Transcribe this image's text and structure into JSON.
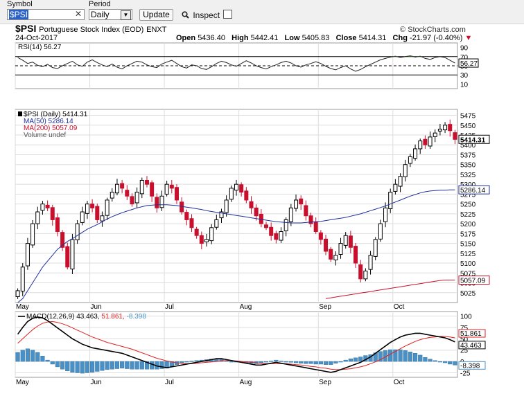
{
  "toolbar": {
    "symbol_label": "Symbol",
    "symbol_value": "$PSI",
    "clear_glyph": "✕",
    "period_label": "Period",
    "period_value": "Daily",
    "period_chevron": "▼",
    "update_label": "Update",
    "inspect_label": "Inspect",
    "inspect_checked": false
  },
  "header": {
    "symbol": "$PSI",
    "name": "Portuguese Stock Index (EOD)",
    "exchange": "ENXT",
    "date": "24-Oct-2017",
    "brand": "© StockCharts.com",
    "open_label": "Open",
    "open": "5436.40",
    "high_label": "High",
    "high": "5442.41",
    "low_label": "Low",
    "low": "5405.83",
    "close_label": "Close",
    "close": "5414.31",
    "chg_label": "Chg",
    "chg": "-21.97 (-0.40%)",
    "chg_icon": "▼"
  },
  "colors": {
    "up": "#000000",
    "down": "#c8102e",
    "ma50": "#1f2f9c",
    "ma200": "#c8102e",
    "hist": "#4a90c4",
    "signal": "#e02020",
    "grid": "#dddddd"
  },
  "chart_data": [
    {
      "type": "line",
      "panel": "RSI",
      "title": "RSI(14) 56.27",
      "last_label": "56.27",
      "y_ticks": [
        90,
        70,
        50,
        30,
        10
      ],
      "ylim": [
        0,
        100
      ],
      "ref_lines": [
        70,
        50,
        30
      ],
      "values": [
        68,
        62,
        55,
        58,
        51,
        48,
        53,
        46,
        44,
        50,
        55,
        60,
        52,
        49,
        58,
        63,
        57,
        52,
        48,
        54,
        47,
        43,
        50,
        55,
        60,
        58,
        52,
        48,
        46,
        54,
        58,
        62,
        55,
        48,
        45,
        52,
        50,
        44,
        42,
        48,
        55,
        60,
        57,
        52,
        49,
        55,
        61,
        56,
        50,
        46,
        43,
        48,
        52,
        57,
        60,
        56,
        50,
        47,
        52,
        55,
        59,
        55,
        49,
        44,
        41,
        46,
        50,
        43,
        38,
        42,
        48,
        53,
        58,
        63,
        66,
        69,
        71,
        68,
        70,
        72,
        69,
        71,
        66,
        64,
        68,
        70,
        68,
        62,
        56
      ]
    },
    {
      "type": "candlestick",
      "panel": "price",
      "title": "$PSI (Daily) 5414.31",
      "legend": [
        "$PSI (Daily) 5414.31",
        "MA(50) 5286.14",
        "MA(200) 5057.09",
        "Volume undef"
      ],
      "x_ticks": [
        "May",
        "Jun",
        "Jul",
        "Aug",
        "Sep",
        "Oct"
      ],
      "y_ticks": [
        5475,
        5450,
        5425,
        5400,
        5375,
        5350,
        5325,
        5300,
        5275,
        5250,
        5225,
        5200,
        5175,
        5150,
        5125,
        5100,
        5075,
        5050,
        5025
      ],
      "ylim": [
        5000,
        5490
      ],
      "last_labels": {
        "close": "5414.31",
        "ma50": "5286.14",
        "ma200": "5057.09"
      },
      "close": [
        5030,
        5090,
        5150,
        5200,
        5230,
        5250,
        5240,
        5210,
        5180,
        5140,
        5090,
        5160,
        5200,
        5230,
        5250,
        5240,
        5210,
        5220,
        5260,
        5280,
        5300,
        5290,
        5270,
        5250,
        5280,
        5310,
        5300,
        5270,
        5240,
        5270,
        5300,
        5290,
        5260,
        5230,
        5210,
        5190,
        5170,
        5150,
        5160,
        5190,
        5210,
        5230,
        5260,
        5290,
        5300,
        5280,
        5260,
        5240,
        5220,
        5200,
        5190,
        5170,
        5160,
        5180,
        5210,
        5240,
        5260,
        5250,
        5220,
        5200,
        5180,
        5160,
        5130,
        5110,
        5120,
        5150,
        5170,
        5140,
        5100,
        5060,
        5080,
        5120,
        5160,
        5200,
        5240,
        5280,
        5300,
        5320,
        5350,
        5370,
        5390,
        5410,
        5400,
        5420,
        5430,
        5440,
        5450,
        5436,
        5414
      ],
      "ma50": [
        4990,
        5010,
        5030,
        5050,
        5070,
        5090,
        5105,
        5120,
        5135,
        5145,
        5155,
        5162,
        5170,
        5178,
        5186,
        5192,
        5198,
        5205,
        5212,
        5218,
        5223,
        5228,
        5232,
        5236,
        5240,
        5243,
        5246,
        5247,
        5248,
        5248,
        5248,
        5247,
        5246,
        5244,
        5242,
        5240,
        5238,
        5236,
        5233,
        5231,
        5229,
        5227,
        5225,
        5223,
        5221,
        5219,
        5217,
        5215,
        5213,
        5211,
        5209,
        5207,
        5205,
        5204,
        5203,
        5202,
        5202,
        5202,
        5203,
        5204,
        5205,
        5206,
        5208,
        5210,
        5212,
        5214,
        5216,
        5219,
        5222,
        5225,
        5229,
        5233,
        5237,
        5241,
        5245,
        5250,
        5255,
        5260,
        5265,
        5270,
        5274,
        5278,
        5281,
        5283,
        5284,
        5285,
        5285,
        5286,
        5286
      ],
      "ma200_start_index": 62,
      "ma200": [
        5010,
        5012,
        5014,
        5016,
        5018,
        5020,
        5022,
        5024,
        5026,
        5028,
        5030,
        5032,
        5034,
        5036,
        5038,
        5040,
        5042,
        5044,
        5046,
        5048,
        5050,
        5052,
        5054,
        5056,
        5057,
        5057,
        5057
      ]
    },
    {
      "type": "line",
      "panel": "MACD",
      "title": "MACD(12,26,9) 43.463, 51.861, -8.398",
      "series_labels": [
        "MACD(12,26,9)",
        "43.463",
        "51.861",
        "-8.398"
      ],
      "x_ticks": [
        "May",
        "Jun",
        "Jul",
        "Aug",
        "Sep",
        "Oct"
      ],
      "y_ticks": [
        100,
        75,
        50,
        25,
        0,
        -25
      ],
      "ylim": [
        -35,
        110
      ],
      "last_labels": {
        "signal": "51.861",
        "macd": "43.463",
        "hist": "-8.398"
      },
      "macd": [
        60,
        75,
        88,
        95,
        98,
        96,
        90,
        82,
        74,
        66,
        58,
        50,
        44,
        38,
        34,
        30,
        28,
        26,
        24,
        22,
        20,
        18,
        14,
        10,
        6,
        2,
        -2,
        -6,
        -10,
        -12,
        -14,
        -12,
        -10,
        -8,
        -6,
        -4,
        -2,
        0,
        2,
        4,
        6,
        6,
        4,
        2,
        0,
        -2,
        -4,
        -6,
        -8,
        -8,
        -6,
        -4,
        -2,
        -4,
        -6,
        -8,
        -10,
        -12,
        -14,
        -16,
        -18,
        -20,
        -22,
        -24,
        -22,
        -18,
        -14,
        -10,
        -6,
        -2,
        4,
        10,
        18,
        26,
        34,
        42,
        48,
        54,
        58,
        60,
        62,
        62,
        60,
        58,
        56,
        54,
        52,
        48,
        43
      ],
      "signal": [
        40,
        50,
        60,
        70,
        78,
        84,
        87,
        88,
        86,
        83,
        79,
        74,
        69,
        64,
        59,
        54,
        50,
        46,
        42,
        39,
        36,
        33,
        30,
        27,
        23,
        19,
        15,
        11,
        7,
        4,
        1,
        -1,
        -3,
        -4,
        -5,
        -5,
        -4,
        -3,
        -2,
        -1,
        0,
        1,
        2,
        2,
        1,
        0,
        -1,
        -2,
        -3,
        -4,
        -5,
        -5,
        -5,
        -5,
        -5,
        -6,
        -7,
        -8,
        -9,
        -11,
        -12,
        -14,
        -15,
        -17,
        -18,
        -18,
        -17,
        -16,
        -14,
        -12,
        -9,
        -5,
        -1,
        4,
        10,
        16,
        22,
        28,
        34,
        39,
        44,
        48,
        51,
        53,
        54,
        55,
        55,
        54,
        52
      ],
      "hist": [
        20,
        25,
        28,
        25,
        20,
        12,
        3,
        -6,
        -12,
        -17,
        -21,
        -24,
        -25,
        -26,
        -25,
        -24,
        -22,
        -20,
        -18,
        -17,
        -16,
        -15,
        -16,
        -17,
        -17,
        -17,
        -17,
        -17,
        -17,
        -16,
        -15,
        -11,
        -7,
        -4,
        -1,
        1,
        2,
        3,
        4,
        5,
        6,
        5,
        2,
        0,
        -1,
        -2,
        -3,
        -4,
        -5,
        -4,
        -1,
        1,
        3,
        1,
        -1,
        -2,
        -3,
        -4,
        -5,
        -5,
        -6,
        -6,
        -7,
        -7,
        -4,
        0,
        3,
        6,
        8,
        10,
        13,
        15,
        19,
        22,
        24,
        26,
        26,
        26,
        24,
        21,
        18,
        14,
        9,
        5,
        2,
        -1,
        -3,
        -6,
        -8
      ]
    }
  ]
}
